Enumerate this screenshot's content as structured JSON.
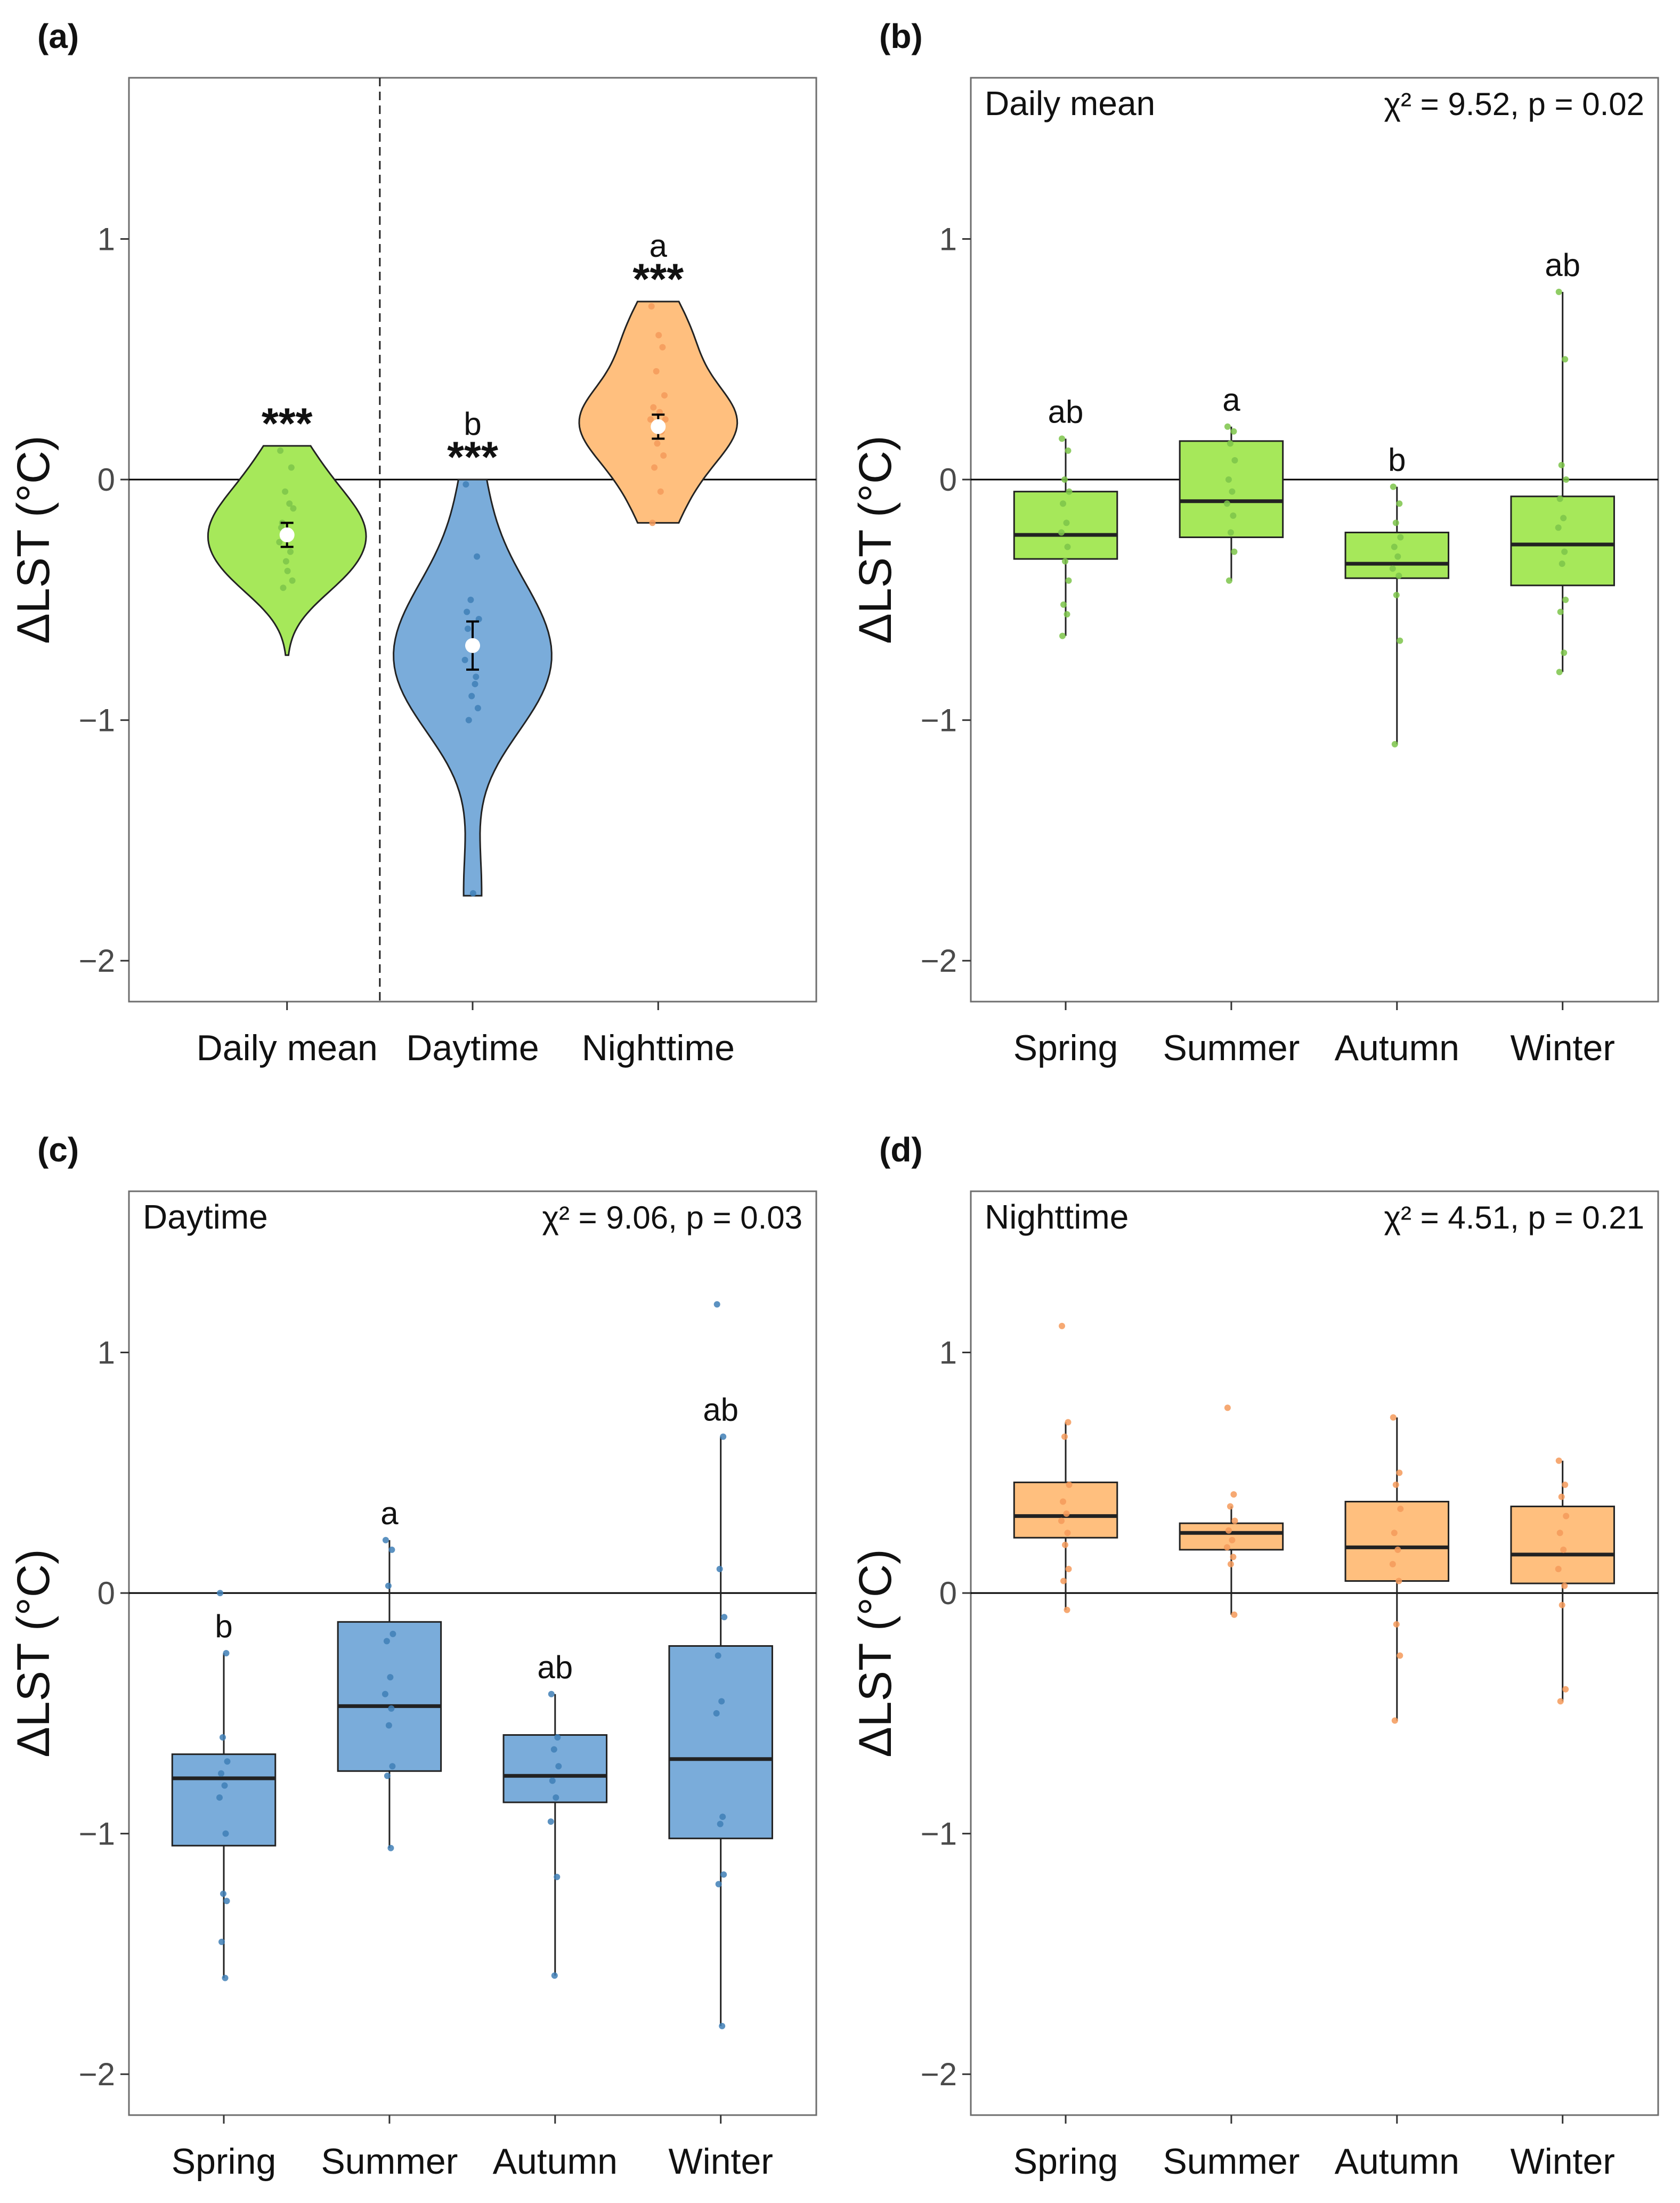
{
  "figure": {
    "colors": {
      "daily_fill": "#a6e85a",
      "daily_point": "#7cc44a",
      "day_fill": "#7aacda",
      "day_point": "#3f7fb6",
      "night_fill": "#ffbf7e",
      "night_point": "#f49a5a",
      "shade": "#e6e6e6"
    }
  },
  "chart_data": [
    {
      "id": "a",
      "type": "violin",
      "tag": "(a)",
      "ylabel": "ΔLST (°C)",
      "ylim": [
        -2.17,
        1.67
      ],
      "yticks": [
        1,
        0,
        -1,
        -2
      ],
      "ytick_labels": [
        "1",
        "0",
        "−1",
        "−2"
      ],
      "reference_line": 0,
      "shaded_category": "Daily mean",
      "categories": [
        "Daily mean",
        "Daytime",
        "Nighttime"
      ],
      "series": [
        {
          "name": "Daily mean",
          "color_key": "daily",
          "mean": -0.23,
          "se": 0.05,
          "min": -0.73,
          "max": 0.14,
          "stars": "***",
          "letter": "",
          "points": [
            0.12,
            0.05,
            -0.05,
            -0.12,
            -0.18,
            -0.22,
            -0.26,
            -0.3,
            -0.34,
            -0.42,
            -0.45,
            -0.1,
            -0.2,
            -0.38
          ]
        },
        {
          "name": "Daytime",
          "color_key": "day",
          "mean": -0.69,
          "se": 0.1,
          "min": -1.73,
          "max": 0.0,
          "stars": "***",
          "letter": "b",
          "points": [
            -0.02,
            -0.32,
            -0.5,
            -0.58,
            -0.62,
            -0.7,
            -0.75,
            -0.82,
            -0.9,
            -0.95,
            -1.0,
            -0.85,
            -0.55,
            -1.72
          ]
        },
        {
          "name": "Nighttime",
          "color_key": "night",
          "mean": 0.22,
          "se": 0.05,
          "min": -0.18,
          "max": 0.74,
          "stars": "***",
          "letter": "a",
          "points": [
            0.72,
            0.55,
            0.45,
            0.35,
            0.3,
            0.28,
            0.25,
            0.2,
            0.15,
            0.1,
            0.05,
            -0.05,
            -0.18,
            0.6,
            0.25
          ]
        }
      ]
    },
    {
      "id": "b",
      "type": "box",
      "tag": "(b)",
      "title": "Daily mean",
      "stat_text": "χ² = 9.52, p = 0.02",
      "ylabel": "ΔLST (°C)",
      "ylim": [
        -2.17,
        1.67
      ],
      "yticks": [
        1,
        0,
        -1,
        -2
      ],
      "ytick_labels": [
        "1",
        "0",
        "−1",
        "−2"
      ],
      "reference_line": 0,
      "color_key": "daily",
      "categories": [
        "Spring",
        "Summer",
        "Autumn",
        "Winter"
      ],
      "series": [
        {
          "name": "Spring",
          "min": -0.65,
          "q1": -0.33,
          "median": -0.23,
          "q3": -0.05,
          "max": 0.17,
          "letter": "ab",
          "points": [
            0.17,
            0.12,
            0.0,
            -0.05,
            -0.1,
            -0.18,
            -0.22,
            -0.28,
            -0.34,
            -0.42,
            -0.52,
            -0.56,
            -0.65
          ]
        },
        {
          "name": "Summer",
          "min": -0.42,
          "q1": -0.24,
          "median": -0.09,
          "q3": 0.16,
          "max": 0.22,
          "letter": "a",
          "points": [
            0.22,
            0.2,
            0.15,
            0.08,
            0.0,
            -0.05,
            -0.1,
            -0.15,
            -0.22,
            -0.3,
            -0.42
          ]
        },
        {
          "name": "Autumn",
          "min": -1.1,
          "q1": -0.41,
          "median": -0.35,
          "q3": -0.22,
          "max": -0.03,
          "letter": "b",
          "points": [
            -0.03,
            -0.1,
            -0.18,
            -0.24,
            -0.28,
            -0.32,
            -0.37,
            -0.4,
            -0.48,
            -0.67,
            -1.1
          ]
        },
        {
          "name": "Winter",
          "min": -0.8,
          "q1": -0.44,
          "median": -0.27,
          "q3": -0.07,
          "max": 0.78,
          "letter": "ab",
          "points": [
            0.78,
            0.5,
            0.06,
            0.0,
            -0.08,
            -0.16,
            -0.2,
            -0.3,
            -0.35,
            -0.5,
            -0.55,
            -0.72,
            -0.8
          ]
        }
      ]
    },
    {
      "id": "c",
      "type": "box",
      "tag": "(c)",
      "title": "Daytime",
      "stat_text": "χ² = 9.06, p = 0.03",
      "ylabel": "ΔLST (°C)",
      "ylim": [
        -2.17,
        1.67
      ],
      "yticks": [
        1,
        0,
        -1,
        -2
      ],
      "ytick_labels": [
        "1",
        "0",
        "−1",
        "−2"
      ],
      "reference_line": 0,
      "color_key": "day",
      "categories": [
        "Spring",
        "Summer",
        "Autumn",
        "Winter"
      ],
      "series": [
        {
          "name": "Spring",
          "min": -1.6,
          "q1": -1.05,
          "median": -0.77,
          "q3": -0.67,
          "max": -0.25,
          "letter": "b",
          "points": [
            0.0,
            -0.25,
            -0.6,
            -0.7,
            -0.75,
            -0.8,
            -0.85,
            -1.0,
            -1.25,
            -1.28,
            -1.45,
            -1.6
          ]
        },
        {
          "name": "Summer",
          "min": -1.06,
          "q1": -0.74,
          "median": -0.47,
          "q3": -0.12,
          "max": 0.22,
          "letter": "a",
          "points": [
            0.22,
            0.18,
            0.03,
            -0.17,
            -0.2,
            -0.35,
            -0.42,
            -0.48,
            -0.55,
            -0.72,
            -0.76,
            -1.06
          ]
        },
        {
          "name": "Autumn",
          "min": -1.59,
          "q1": -0.87,
          "median": -0.76,
          "q3": -0.59,
          "max": -0.42,
          "letter": "ab",
          "points": [
            -0.42,
            -0.6,
            -0.65,
            -0.72,
            -0.78,
            -0.85,
            -0.95,
            -1.18,
            -1.59
          ]
        },
        {
          "name": "Winter",
          "min": -1.8,
          "q1": -1.02,
          "median": -0.69,
          "q3": -0.22,
          "max": 0.65,
          "letter": "ab",
          "points": [
            1.2,
            0.65,
            0.1,
            -0.1,
            -0.26,
            -0.45,
            -0.5,
            -0.93,
            -0.96,
            -1.17,
            -1.21,
            -1.8
          ]
        }
      ]
    },
    {
      "id": "d",
      "type": "box",
      "tag": "(d)",
      "title": "Nighttime",
      "stat_text": "χ² = 4.51, p = 0.21",
      "ylabel": "ΔLST (°C)",
      "ylim": [
        -2.17,
        1.67
      ],
      "yticks": [
        1,
        0,
        -1,
        -2
      ],
      "ytick_labels": [
        "1",
        "0",
        "−1",
        "−2"
      ],
      "reference_line": 0,
      "color_key": "night",
      "categories": [
        "Spring",
        "Summer",
        "Autumn",
        "Winter"
      ],
      "series": [
        {
          "name": "Spring",
          "min": -0.07,
          "q1": 0.23,
          "median": 0.32,
          "q3": 0.46,
          "max": 0.71,
          "letter": "",
          "points": [
            1.11,
            0.71,
            0.65,
            0.45,
            0.38,
            0.33,
            0.3,
            0.25,
            0.2,
            0.1,
            0.05,
            -0.07
          ]
        },
        {
          "name": "Summer",
          "min": -0.09,
          "q1": 0.18,
          "median": 0.25,
          "q3": 0.29,
          "max": 0.36,
          "letter": "",
          "points": [
            0.77,
            0.41,
            0.36,
            0.3,
            0.26,
            0.22,
            0.19,
            0.15,
            0.12,
            -0.09
          ]
        },
        {
          "name": "Autumn",
          "min": -0.53,
          "q1": 0.05,
          "median": 0.19,
          "q3": 0.38,
          "max": 0.73,
          "letter": "",
          "points": [
            0.73,
            0.5,
            0.45,
            0.35,
            0.25,
            0.18,
            0.12,
            0.05,
            -0.13,
            -0.26,
            -0.53
          ]
        },
        {
          "name": "Winter",
          "min": -0.45,
          "q1": 0.04,
          "median": 0.16,
          "q3": 0.36,
          "max": 0.55,
          "letter": "",
          "points": [
            0.55,
            0.45,
            0.4,
            0.32,
            0.25,
            0.18,
            0.1,
            0.03,
            -0.05,
            -0.4,
            -0.45
          ]
        }
      ]
    }
  ]
}
